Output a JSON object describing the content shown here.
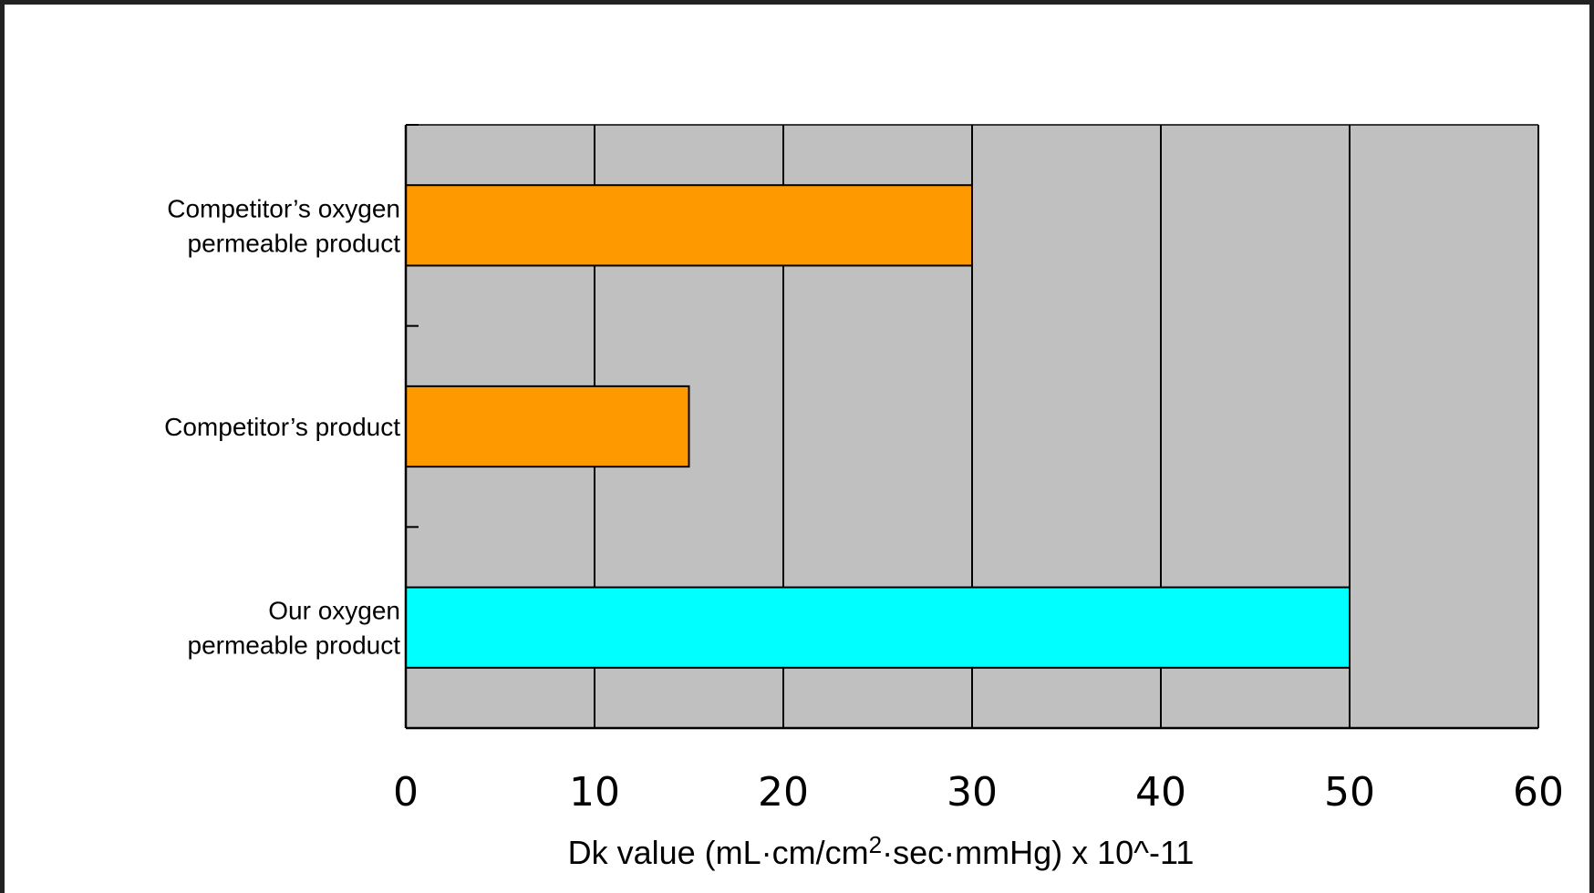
{
  "chart_data": {
    "type": "bar",
    "orientation": "horizontal",
    "categories": [
      [
        "Competitor’s oxygen",
        "permeable product"
      ],
      [
        "Competitor’s product"
      ],
      [
        "Our oxygen",
        "permeable product"
      ]
    ],
    "values": [
      30,
      15,
      50
    ],
    "bar_colors": [
      "#FF9900",
      "#FF9900",
      "#00FFFF"
    ],
    "xlim": [
      0,
      60
    ],
    "xticks": [
      "0",
      "10",
      "20",
      "30",
      "40",
      "50",
      "60"
    ],
    "xlabel": {
      "pre": "Dk value (mL·cm/cm",
      "sup": "2",
      "post": "·sec·mmHg) x 10^-11"
    },
    "ylabel": "",
    "title": "",
    "grid": true,
    "plot_background": "#C0C0C0",
    "legend": "none"
  }
}
